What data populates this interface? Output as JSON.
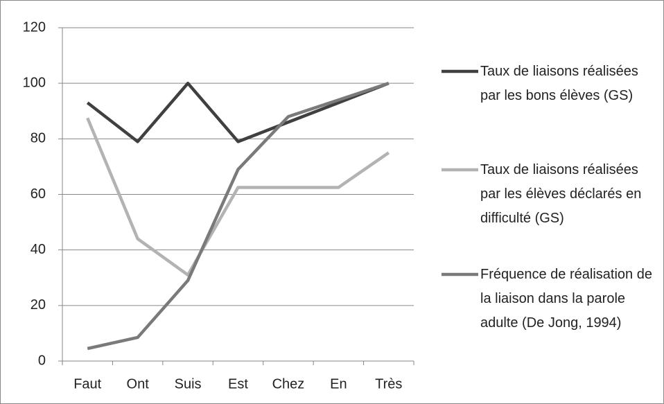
{
  "chart_data": {
    "type": "line",
    "categories": [
      "Faut",
      "Ont",
      "Suis",
      "Est",
      "Chez",
      "En",
      "Très"
    ],
    "series": [
      {
        "name": "Taux de liaisons réalisées par les bons élèves (GS)",
        "color": "#404040",
        "values": [
          93,
          79,
          100,
          79,
          86,
          93,
          100
        ]
      },
      {
        "name": "Taux de liaisons réalisées par les élèves déclarés en difficulté (GS)",
        "color": "#b3b3b3",
        "values": [
          87.5,
          44,
          31,
          62.5,
          62.5,
          62.5,
          75
        ]
      },
      {
        "name": "Fréquence de réalisation de la liaison dans la parole adulte (De Jong, 1994)",
        "color": "#7a7a7a",
        "values": [
          4.5,
          8.5,
          29,
          69,
          88,
          94,
          100
        ]
      }
    ],
    "ylim": [
      0,
      120
    ],
    "yticks": [
      0,
      20,
      40,
      60,
      80,
      100,
      120
    ],
    "grid": true,
    "legend": "right"
  }
}
